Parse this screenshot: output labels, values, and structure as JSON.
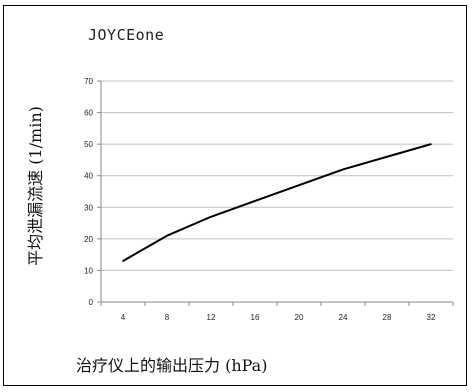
{
  "chart_data": {
    "type": "line",
    "title": "JOYCEone",
    "xlabel": "治疗仪上的输出压力 (hPa)",
    "ylabel": "平均泄漏流速 (1/min)",
    "categories": [
      "4",
      "8",
      "12",
      "16",
      "20",
      "24",
      "28",
      "32"
    ],
    "series": [
      {
        "values": [
          13,
          21,
          27,
          32,
          37,
          42,
          46,
          50
        ]
      }
    ],
    "yticks": [
      "0",
      "10",
      "20",
      "30",
      "40",
      "50",
      "60",
      "70"
    ],
    "ylim": [
      0,
      70
    ],
    "grid": true,
    "line_color": "#000000",
    "grid_color": "#bfbfbf"
  }
}
